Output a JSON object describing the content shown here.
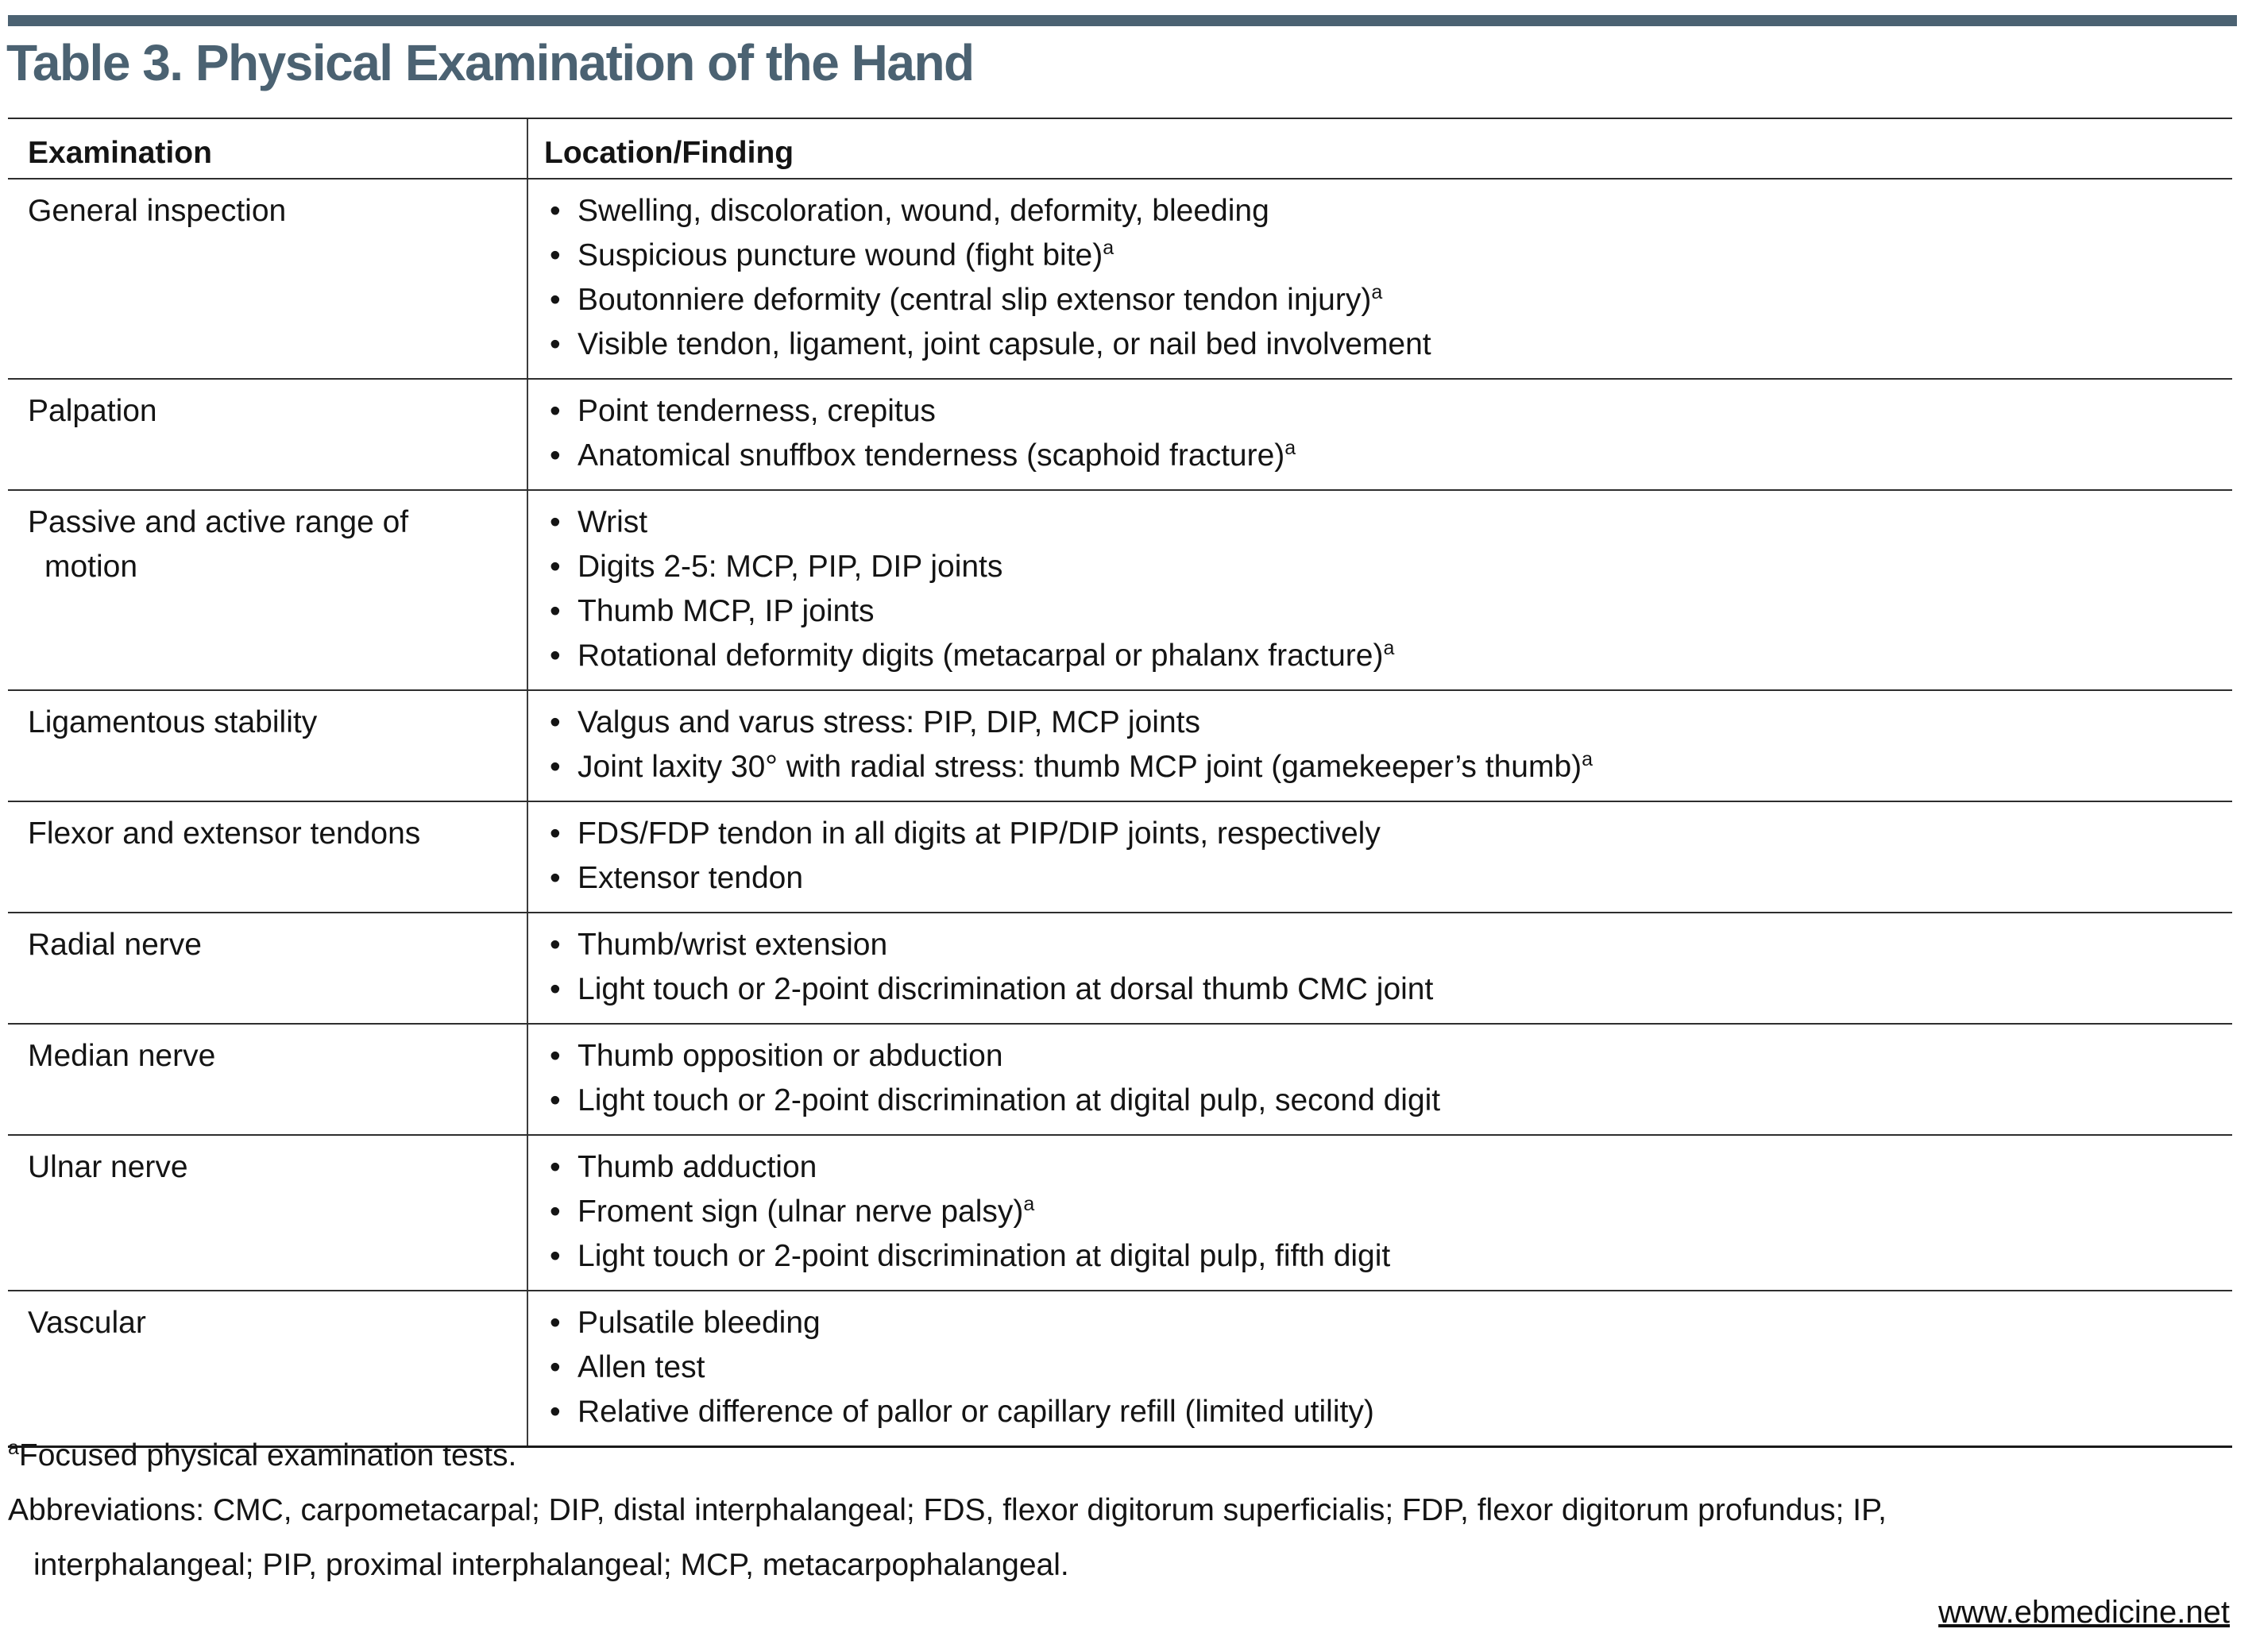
{
  "page": {
    "title": "Table 3. Physical Examination of the Hand",
    "accent_color": "#4b6272",
    "link": "www.ebmedicine.net"
  },
  "table": {
    "columns": [
      "Examination",
      "Location/Finding"
    ],
    "rows": [
      {
        "examination": "General inspection",
        "findings": [
          {
            "text": "Swelling, discoloration, wound, deformity, bleeding",
            "sup": ""
          },
          {
            "text": "Suspicious puncture wound (fight bite)",
            "sup": "a"
          },
          {
            "text": "Boutonniere deformity (central slip extensor tendon injury)",
            "sup": "a"
          },
          {
            "text": "Visible tendon, ligament, joint capsule, or nail bed involvement",
            "sup": ""
          }
        ]
      },
      {
        "examination": "Palpation",
        "findings": [
          {
            "text": "Point tenderness, crepitus",
            "sup": ""
          },
          {
            "text": "Anatomical snuffbox tenderness (scaphoid fracture)",
            "sup": "a"
          }
        ]
      },
      {
        "examination": "Passive and active range of motion",
        "findings": [
          {
            "text": "Wrist",
            "sup": ""
          },
          {
            "text": "Digits 2-5: MCP, PIP, DIP joints",
            "sup": ""
          },
          {
            "text": "Thumb MCP, IP joints",
            "sup": ""
          },
          {
            "text": "Rotational deformity digits (metacarpal or phalanx fracture)",
            "sup": "a"
          }
        ]
      },
      {
        "examination": "Ligamentous stability",
        "findings": [
          {
            "text": "Valgus and varus stress: PIP, DIP, MCP joints",
            "sup": ""
          },
          {
            "text": "Joint laxity 30° with radial stress: thumb MCP joint (gamekeeper’s thumb)",
            "sup": "a"
          }
        ]
      },
      {
        "examination": "Flexor and extensor tendons",
        "findings": [
          {
            "text": "FDS/FDP tendon in all digits at PIP/DIP joints, respectively",
            "sup": ""
          },
          {
            "text": "Extensor tendon",
            "sup": ""
          }
        ]
      },
      {
        "examination": "Radial nerve",
        "findings": [
          {
            "text": "Thumb/wrist extension",
            "sup": ""
          },
          {
            "text": "Light touch or 2-point discrimination at dorsal thumb CMC joint",
            "sup": ""
          }
        ]
      },
      {
        "examination": "Median nerve",
        "findings": [
          {
            "text": "Thumb opposition or abduction",
            "sup": ""
          },
          {
            "text": "Light touch or 2-point discrimination at digital pulp, second digit",
            "sup": ""
          }
        ]
      },
      {
        "examination": "Ulnar nerve",
        "findings": [
          {
            "text": "Thumb adduction",
            "sup": ""
          },
          {
            "text": "Froment sign (ulnar nerve palsy)",
            "sup": "a"
          },
          {
            "text": "Light touch or 2-point discrimination at digital pulp, fifth digit",
            "sup": ""
          }
        ]
      },
      {
        "examination": "Vascular",
        "findings": [
          {
            "text": "Pulsatile bleeding",
            "sup": ""
          },
          {
            "text": "Allen test",
            "sup": ""
          },
          {
            "text": "Relative difference of pallor or capillary refill (limited utility)",
            "sup": ""
          }
        ]
      }
    ]
  },
  "footnotes": {
    "marker": "a",
    "focused": "Focused physical examination tests.",
    "abbreviations_line1": "Abbreviations: CMC, carpometacarpal; DIP, distal interphalangeal; FDS, flexor digitorum superficialis; FDP, flexor digitorum profundus; IP,",
    "abbreviations_line2": "interphalangeal; PIP, proximal interphalangeal; MCP, metacarpophalangeal."
  },
  "icons": {
    "bullet": "•"
  }
}
